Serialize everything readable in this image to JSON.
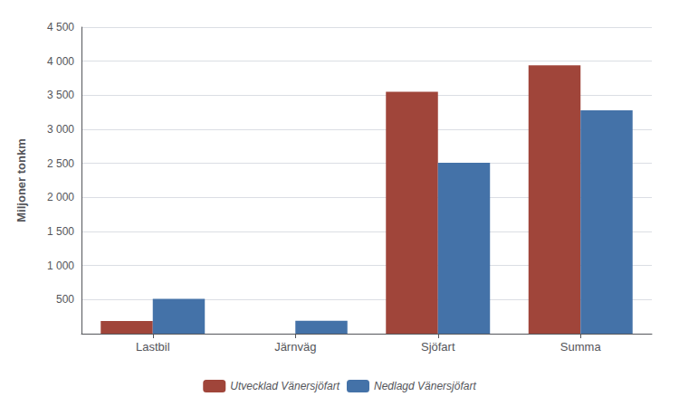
{
  "chart_data": {
    "type": "bar",
    "categories": [
      "Lastbil",
      "Järnväg",
      "Sjöfart",
      "Summa"
    ],
    "series": [
      {
        "name": "Utvecklad Vänersjöfart",
        "color": "#A0453A",
        "values": [
          185,
          0,
          3550,
          3940
        ]
      },
      {
        "name": "Nedlagd Vänersjöfart",
        "color": "#4472A8",
        "values": [
          510,
          190,
          2510,
          3280
        ]
      }
    ],
    "ylabel": "Miljoner tonkm",
    "ylim": [
      0,
      4500
    ],
    "yticks": [
      500,
      {
        "value": 1000,
        "label": "1 000"
      },
      {
        "value": 1500,
        "label": "1 500"
      },
      {
        "value": 2000,
        "label": "2 000"
      },
      {
        "value": 2500,
        "label": "2 500"
      },
      {
        "value": 3000,
        "label": "3 000"
      },
      {
        "value": 3500,
        "label": "3 500"
      },
      {
        "value": 4000,
        "label": "4 000"
      },
      {
        "value": 4500,
        "label": "4 500"
      }
    ],
    "grid": true,
    "legend": "bottom"
  }
}
